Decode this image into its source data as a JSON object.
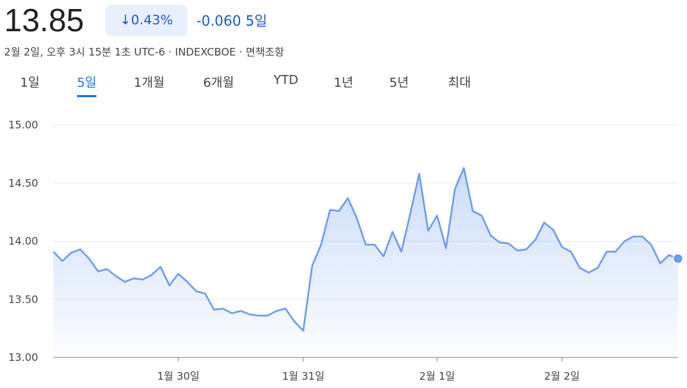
{
  "header": {
    "price": "13.85",
    "change_percent": "0.43%",
    "change": "-0.060",
    "period": "5일",
    "info": "2월 2일, 오후 3시 15분 1초 UTC-6 · INDEXCBOE · 면책조항"
  },
  "tabs": {
    "items": [
      "1일",
      "5일",
      "1개월",
      "6개월",
      "YTD",
      "1년",
      "5년",
      "최대"
    ],
    "selected": 1
  },
  "chart_data": {
    "type": "area",
    "color": "#6b9cf0",
    "x": [
      0,
      1,
      2,
      3,
      4,
      5,
      6,
      7,
      8,
      9,
      10,
      11,
      12,
      13,
      14,
      15,
      16,
      17,
      18,
      19,
      20,
      21,
      22,
      23,
      24,
      25,
      26,
      27,
      28,
      29,
      30,
      31,
      32,
      33,
      34,
      35,
      36,
      37,
      38,
      39,
      40,
      41,
      42,
      43,
      44,
      45,
      46,
      47,
      48,
      49,
      50,
      51,
      52,
      53,
      54,
      55,
      56,
      57,
      58,
      59,
      60,
      61,
      62,
      63,
      64,
      65,
      66,
      67,
      68,
      69,
      70
    ],
    "values": [
      13.91,
      13.83,
      13.9,
      13.93,
      13.85,
      13.74,
      13.76,
      13.7,
      13.65,
      13.68,
      13.67,
      13.71,
      13.78,
      13.62,
      13.72,
      13.65,
      13.57,
      13.55,
      13.41,
      13.42,
      13.38,
      13.4,
      13.37,
      13.36,
      13.36,
      13.4,
      13.42,
      13.31,
      13.23,
      13.79,
      13.97,
      14.27,
      14.26,
      14.37,
      14.2,
      13.97,
      13.97,
      13.87,
      14.08,
      13.91,
      14.24,
      14.58,
      14.09,
      14.22,
      13.94,
      14.45,
      14.63,
      14.26,
      14.22,
      14.05,
      13.99,
      13.98,
      13.92,
      13.93,
      14.01,
      14.16,
      14.1,
      13.95,
      13.91,
      13.77,
      13.73,
      13.77,
      13.91,
      13.91,
      14.0,
      14.04,
      14.04,
      13.97,
      13.81,
      13.88,
      13.85
    ],
    "xlim": [
      0,
      70
    ],
    "xticks": [
      {
        "value": 14,
        "label": "1월 30일"
      },
      {
        "value": 28,
        "label": "1월 31일"
      },
      {
        "value": 43,
        "label": "2월 1일"
      },
      {
        "value": 57,
        "label": "2월 2일"
      }
    ],
    "ylim": [
      13,
      15
    ],
    "yticks": [
      {
        "value": 13,
        "label": "13.00"
      },
      {
        "value": 13.5,
        "label": "13.50"
      },
      {
        "value": 14,
        "label": "14.00"
      },
      {
        "value": 14.5,
        "label": "14.50"
      },
      {
        "value": 15,
        "label": "15.00"
      }
    ],
    "grid": true
  }
}
